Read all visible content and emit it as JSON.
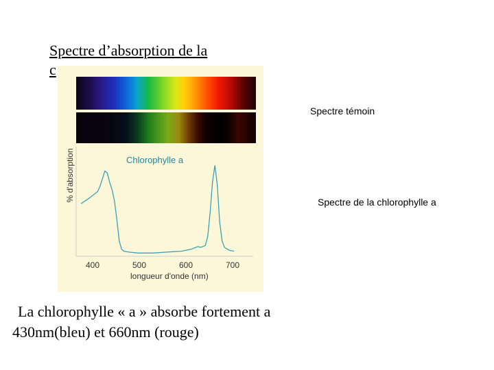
{
  "title": {
    "line1": "Spectre d’absorption de la",
    "line2": "c"
  },
  "figure": {
    "series_label": "Chlorophylle a",
    "ylabel": "% d'absorption",
    "xlabel": "longueur d'onde (nm)",
    "ticks": [
      "400",
      "500",
      "600",
      "700"
    ]
  },
  "labels": {
    "witness": "Spectre témoin",
    "chlorophyll": "Spectre de la chlorophylle a"
  },
  "caption": {
    "line1": "La chlorophylle « a » absorbe fortement a",
    "line2": "430nm(bleu) et 660nm (rouge)"
  },
  "chart_data": {
    "type": "line",
    "xlabel": "longueur d'onde (nm)",
    "ylabel": "% d'absorption",
    "xlim": [
      370,
      740
    ],
    "ylim": [
      0,
      100
    ],
    "series": [
      {
        "name": "Chlorophylle a",
        "x": [
          380,
          395,
          405,
          415,
          420,
          425,
          430,
          435,
          440,
          445,
          450,
          455,
          460,
          465,
          470,
          480,
          500,
          530,
          560,
          590,
          610,
          620,
          625,
          630,
          640,
          645,
          650,
          655,
          660,
          665,
          670,
          675,
          680,
          690,
          700
        ],
        "y": [
          55,
          60,
          64,
          68,
          74,
          82,
          90,
          88,
          78,
          70,
          58,
          38,
          15,
          6,
          4,
          3,
          2,
          2,
          3,
          4,
          6,
          8,
          9,
          8,
          10,
          20,
          45,
          78,
          96,
          75,
          35,
          15,
          8,
          5,
          4
        ]
      }
    ],
    "colors": {
      "curve": "#3aa0b6",
      "spectrum_background": "#fcf7d8"
    }
  }
}
